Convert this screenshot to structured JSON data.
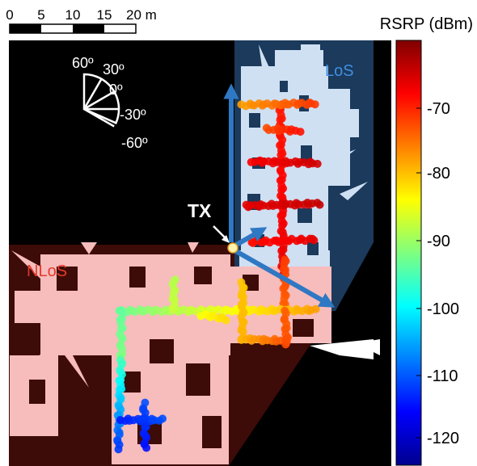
{
  "scale_bar": {
    "ticks": [
      "0",
      "5",
      "10",
      "15",
      "20 m"
    ]
  },
  "colorbar": {
    "title": "RSRP (dBm)",
    "ticks": [
      "-70",
      "-80",
      "-90",
      "-100",
      "-110",
      "-120"
    ],
    "range": [
      -125,
      -62
    ]
  },
  "angle_legend": {
    "labels": [
      "60º",
      "30º",
      "0º",
      "-30º",
      "-60º"
    ]
  },
  "regions": {
    "los_label": "LoS",
    "nlos_label": "NLoS",
    "los_color": "#1b3a5c",
    "nlos_color": "#3d0b08"
  },
  "transmitter": {
    "label": "TX"
  },
  "colors": {
    "arrow": "#2f78c4",
    "map_light": "#cfe0f3",
    "map_pink": "#f7bcbc",
    "background": "#000000"
  }
}
